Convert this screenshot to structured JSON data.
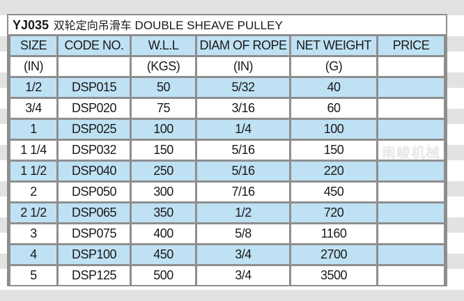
{
  "title": {
    "code": "YJ035",
    "chinese": "双轮定向吊滑车",
    "english": "DOUBLE SHEAVE PULLEY"
  },
  "colors": {
    "header_row": "#bfe1f4",
    "border": "#8e8e8e"
  },
  "headers": [
    "SIZE",
    "CODE NO.",
    "W.L.L",
    "DIAM OF ROPE",
    "NET WEIGHT",
    "PRICE"
  ],
  "units": [
    "(IN)",
    "",
    "(KGS)",
    "(IN)",
    "(G)",
    ""
  ],
  "rows": [
    [
      "1/2",
      "DSP015",
      "50",
      "5/32",
      "40",
      ""
    ],
    [
      "3/4",
      "DSP020",
      "75",
      "3/16",
      "60",
      ""
    ],
    [
      "1",
      "DSP025",
      "100",
      "1/4",
      "100",
      ""
    ],
    [
      "1 1/4",
      "DSP032",
      "150",
      "5/16",
      "150",
      ""
    ],
    [
      "1 1/2",
      "DSP040",
      "250",
      "5/16",
      "220",
      ""
    ],
    [
      "2",
      "DSP050",
      "300",
      "7/16",
      "450",
      ""
    ],
    [
      "2 1/2",
      "DSP065",
      "350",
      "1/2",
      "720",
      ""
    ],
    [
      "3",
      "DSP075",
      "400",
      "5/8",
      "1160",
      ""
    ],
    [
      "4",
      "DSP100",
      "450",
      "3/4",
      "2700",
      ""
    ],
    [
      "5",
      "DSP125",
      "500",
      "3/4",
      "3500",
      ""
    ]
  ],
  "watermark": "雨峻机械"
}
